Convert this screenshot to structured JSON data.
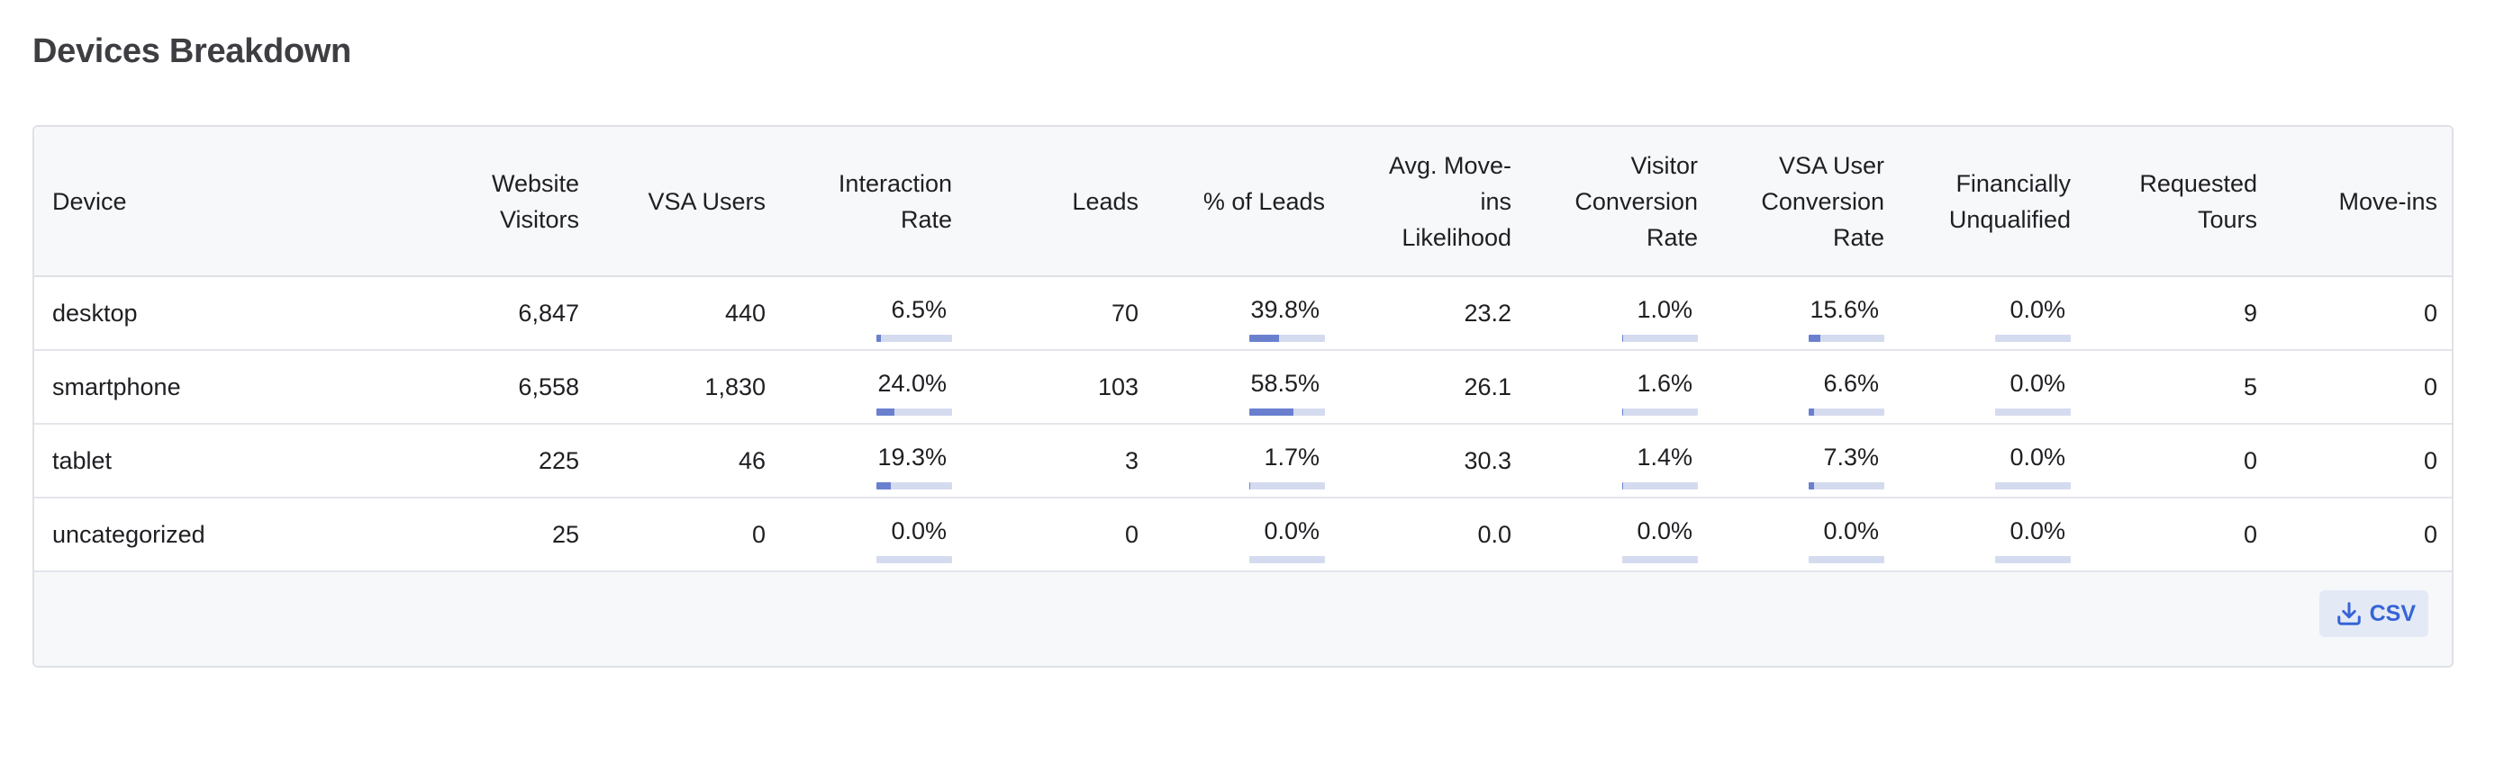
{
  "page": {
    "title": "Devices Breakdown"
  },
  "table": {
    "columns": [
      [
        "Device"
      ],
      [
        "Website",
        "Visitors"
      ],
      [
        "VSA Users"
      ],
      [
        "Interaction",
        "Rate"
      ],
      [
        "Leads"
      ],
      [
        "% of Leads"
      ],
      [
        "Avg. Move-ins",
        "Likelihood"
      ],
      [
        "Visitor",
        "Conversion",
        "Rate"
      ],
      [
        "VSA User",
        "Conversion",
        "Rate"
      ],
      [
        "Financially",
        "Unqualified"
      ],
      [
        "Requested",
        "Tours"
      ],
      [
        "Move-ins"
      ]
    ],
    "rows": [
      {
        "device": "desktop",
        "website_visitors": "6,847",
        "vsa_users": "440",
        "interaction_rate": {
          "text": "6.5%",
          "pct": 6.5
        },
        "leads": "70",
        "pct_of_leads": {
          "text": "39.8%",
          "pct": 39.8
        },
        "avg_movein_likelihood": "23.2",
        "visitor_conversion_rate": {
          "text": "1.0%",
          "pct": 1.0
        },
        "vsa_user_conversion_rate": {
          "text": "15.6%",
          "pct": 15.6
        },
        "financially_unqualified": {
          "text": "0.0%",
          "pct": 0.0
        },
        "requested_tours": "9",
        "move_ins": "0"
      },
      {
        "device": "smartphone",
        "website_visitors": "6,558",
        "vsa_users": "1,830",
        "interaction_rate": {
          "text": "24.0%",
          "pct": 24.0
        },
        "leads": "103",
        "pct_of_leads": {
          "text": "58.5%",
          "pct": 58.5
        },
        "avg_movein_likelihood": "26.1",
        "visitor_conversion_rate": {
          "text": "1.6%",
          "pct": 1.6
        },
        "vsa_user_conversion_rate": {
          "text": "6.6%",
          "pct": 6.6
        },
        "financially_unqualified": {
          "text": "0.0%",
          "pct": 0.0
        },
        "requested_tours": "5",
        "move_ins": "0"
      },
      {
        "device": "tablet",
        "website_visitors": "225",
        "vsa_users": "46",
        "interaction_rate": {
          "text": "19.3%",
          "pct": 19.3
        },
        "leads": "3",
        "pct_of_leads": {
          "text": "1.7%",
          "pct": 1.7
        },
        "avg_movein_likelihood": "30.3",
        "visitor_conversion_rate": {
          "text": "1.4%",
          "pct": 1.4
        },
        "vsa_user_conversion_rate": {
          "text": "7.3%",
          "pct": 7.3
        },
        "financially_unqualified": {
          "text": "0.0%",
          "pct": 0.0
        },
        "requested_tours": "0",
        "move_ins": "0"
      },
      {
        "device": "uncategorized",
        "website_visitors": "25",
        "vsa_users": "0",
        "interaction_rate": {
          "text": "0.0%",
          "pct": 0.0
        },
        "leads": "0",
        "pct_of_leads": {
          "text": "0.0%",
          "pct": 0.0
        },
        "avg_movein_likelihood": "0.0",
        "visitor_conversion_rate": {
          "text": "0.0%",
          "pct": 0.0
        },
        "vsa_user_conversion_rate": {
          "text": "0.0%",
          "pct": 0.0
        },
        "financially_unqualified": {
          "text": "0.0%",
          "pct": 0.0
        },
        "requested_tours": "0",
        "move_ins": "0"
      }
    ]
  },
  "footer": {
    "csv_button": {
      "label": "CSV",
      "icon": "download-icon"
    }
  },
  "colors": {
    "bar_fill": "#6a80cf",
    "bar_track": "#d5dbef",
    "header_bg": "#f7f8fa",
    "accent": "#3564d6"
  }
}
